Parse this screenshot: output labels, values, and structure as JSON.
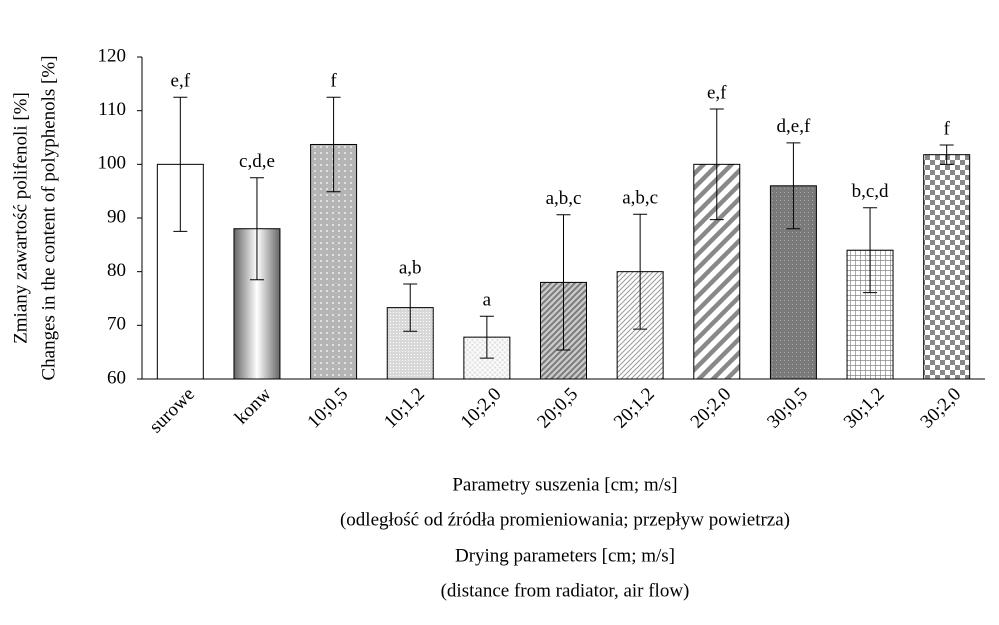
{
  "chart_data": {
    "type": "bar",
    "ylabel": [
      "Zmiany zawartość polifenoli [%]",
      "Changes in the content of polyphenols [%]"
    ],
    "xlabel": [
      "Parametry suszenia [cm; m/s]",
      "(odległość od źródła promieniowania; przepływ powietrza)",
      "Drying parameters [cm; m/s]",
      "(distance from radiator, air flow)"
    ],
    "categories": [
      "surowe",
      "konw",
      "10;0,5",
      "10;1,2",
      "10;2,0",
      "20;0,5",
      "20;1,2",
      "20;2,0",
      "30;0,5",
      "30;1,2",
      "30;2,0"
    ],
    "values": [
      100,
      88,
      103.7,
      73.3,
      67.8,
      78,
      80,
      100,
      96,
      84,
      101.8
    ],
    "errors": [
      12.5,
      9.5,
      8.8,
      4.4,
      3.9,
      12.6,
      10.7,
      10.3,
      8,
      7.9,
      1.8
    ],
    "annotations": [
      "e,f",
      "c,d,e",
      "f",
      "a,b",
      "a",
      "a,b,c",
      "a,b,c",
      "e,f",
      "d,e,f",
      "b,c,d",
      "f"
    ],
    "patterns": [
      "white",
      "gradient",
      "dots",
      "fine-dots",
      "cross",
      "dark-diagonal",
      "light-diagonal",
      "wide-diagonal",
      "dark-dots",
      "grid",
      "checker"
    ],
    "ylim": [
      60,
      120
    ],
    "yticks": [
      60,
      70,
      80,
      90,
      100,
      110,
      120
    ]
  }
}
